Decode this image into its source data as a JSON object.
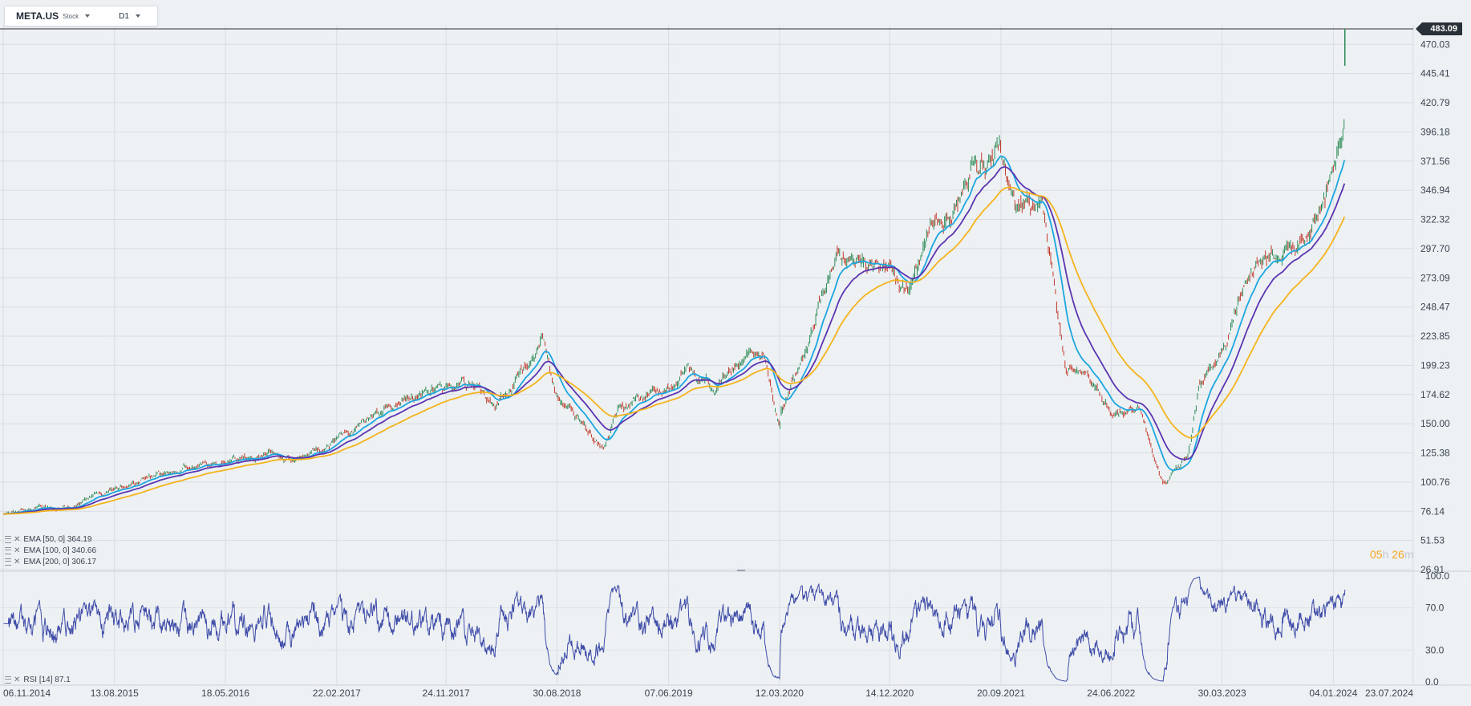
{
  "toolbar": {
    "symbol": "META.US",
    "symbol_type": "Stock",
    "timeframe": "D1"
  },
  "last_price_label": "483.09",
  "countdown": {
    "hours": "05",
    "h": "h",
    "minutes": "26",
    "m": "m"
  },
  "legends": [
    {
      "text": "EMA  [50,  0]  364.19"
    },
    {
      "text": "EMA  [100,  0]  340.66"
    },
    {
      "text": "EMA  [200,  0]  306.17"
    }
  ],
  "rsi_legend": "RSI  [14]  87.1",
  "colors": {
    "ema50": "#1ca6e0",
    "ema100": "#5b34b0",
    "ema200": "#f5b31b",
    "rsi": "#3f4da8",
    "up": "#2e8b57",
    "down": "#c0392b",
    "grid": "#d8dde2"
  },
  "chart_data": {
    "type": "line",
    "x_tick_labels": [
      "06.11.2014",
      "13.08.2015",
      "18.05.2016",
      "22.02.2017",
      "24.11.2017",
      "30.08.2018",
      "07.06.2019",
      "12.03.2020",
      "14.12.2020",
      "20.09.2021",
      "24.06.2022",
      "30.03.2023",
      "04.01.2024",
      "23.07.2024"
    ],
    "y_tick_labels": [
      "470.03",
      "445.41",
      "420.79",
      "396.18",
      "371.56",
      "346.94",
      "322.32",
      "297.70",
      "273.09",
      "248.47",
      "223.85",
      "199.23",
      "174.62",
      "150.00",
      "125.38",
      "100.76",
      "76.14",
      "51.53",
      "26.91"
    ],
    "ylim": [
      26.91,
      483.09
    ],
    "last_price": 483.09,
    "price_keypoints": [
      [
        "06.11.2014",
        74
      ],
      [
        "01.01.2015",
        76
      ],
      [
        "01.05.2015",
        80
      ],
      [
        "13.08.2015",
        94
      ],
      [
        "01.11.2015",
        106
      ],
      [
        "18.05.2016",
        117
      ],
      [
        "01.09.2016",
        127
      ],
      [
        "01.11.2016",
        118
      ],
      [
        "22.02.2017",
        134
      ],
      [
        "01.05.2017",
        150
      ],
      [
        "01.08.2017",
        170
      ],
      [
        "24.11.2017",
        180
      ],
      [
        "01.02.2018",
        185
      ],
      [
        "25.03.2018",
        160
      ],
      [
        "25.07.2018",
        217
      ],
      [
        "30.08.2018",
        175
      ],
      [
        "01.11.2018",
        150
      ],
      [
        "25.12.2018",
        128
      ],
      [
        "01.02.2019",
        162
      ],
      [
        "07.06.2019",
        180
      ],
      [
        "01.08.2019",
        195
      ],
      [
        "01.10.2019",
        176
      ],
      [
        "01.01.2020",
        212
      ],
      [
        "01.02.2020",
        205
      ],
      [
        "12.03.2020",
        146
      ],
      [
        "16.03.2020",
        160
      ],
      [
        "01.06.2020",
        230
      ],
      [
        "01.08.2020",
        292
      ],
      [
        "14.12.2020",
        276
      ],
      [
        "01.02.2021",
        261
      ],
      [
        "01.04.2021",
        320
      ],
      [
        "01.07.2021",
        350
      ],
      [
        "20.09.2021",
        378
      ],
      [
        "01.11.2021",
        332
      ],
      [
        "01.01.2022",
        340
      ],
      [
        "10.02.2022",
        235
      ],
      [
        "01.03.2022",
        200
      ],
      [
        "01.05.2022",
        190
      ],
      [
        "24.06.2022",
        160
      ],
      [
        "01.09.2022",
        162
      ],
      [
        "01.11.2022",
        98
      ],
      [
        "01.01.2023",
        120
      ],
      [
        "01.02.2023",
        185
      ],
      [
        "30.03.2023",
        210
      ],
      [
        "01.05.2023",
        240
      ],
      [
        "01.07.2023",
        290
      ],
      [
        "01.10.2023",
        305
      ],
      [
        "01.12.2023",
        330
      ],
      [
        "04.01.2024",
        355
      ],
      [
        "15.01.2024",
        385
      ],
      [
        "01.02.2024",
        398
      ],
      [
        "02.02.2024",
        470
      ]
    ],
    "series": [
      {
        "name": "EMA  [50,  0]",
        "last_value": 364.19
      },
      {
        "name": "EMA  [100,  0]",
        "last_value": 340.66
      },
      {
        "name": "EMA  [200,  0]",
        "last_value": 306.17
      }
    ],
    "rsi": {
      "name": "RSI  [14]",
      "last_value": 87.1,
      "ylim": [
        0.0,
        100.0
      ],
      "y_tick_labels": [
        "100.0",
        "70.0",
        "30.0",
        "0.0"
      ]
    }
  }
}
